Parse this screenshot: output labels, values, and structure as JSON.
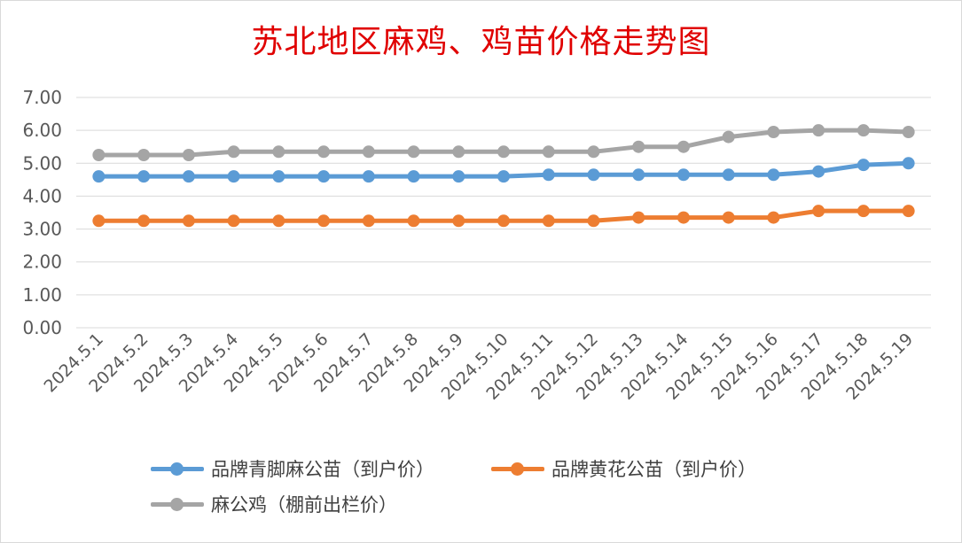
{
  "chart_data": {
    "type": "line",
    "title": "苏北地区麻鸡、鸡苗价格走势图",
    "categories": [
      "2024.5.1",
      "2024.5.2",
      "2024.5.3",
      "2024.5.4",
      "2024.5.5",
      "2024.5.6",
      "2024.5.7",
      "2024.5.8",
      "2024.5.9",
      "2024.5.10",
      "2024.5.11",
      "2024.5.12",
      "2024.5.13",
      "2024.5.14",
      "2024.5.15",
      "2024.5.16",
      "2024.5.17",
      "2024.5.18",
      "2024.5.19"
    ],
    "series": [
      {
        "name": "品牌青脚麻公苗（到户价）",
        "color": "#5b9bd5",
        "values": [
          4.6,
          4.6,
          4.6,
          4.6,
          4.6,
          4.6,
          4.6,
          4.6,
          4.6,
          4.6,
          4.65,
          4.65,
          4.65,
          4.65,
          4.65,
          4.65,
          4.75,
          4.95,
          5.0
        ]
      },
      {
        "name": "品牌黄花公苗（到户价）",
        "color": "#ed7d31",
        "values": [
          3.25,
          3.25,
          3.25,
          3.25,
          3.25,
          3.25,
          3.25,
          3.25,
          3.25,
          3.25,
          3.25,
          3.25,
          3.35,
          3.35,
          3.35,
          3.35,
          3.55,
          3.55,
          3.55
        ]
      },
      {
        "name": "麻公鸡（棚前出栏价）",
        "color": "#a5a5a5",
        "values": [
          5.25,
          5.25,
          5.25,
          5.35,
          5.35,
          5.35,
          5.35,
          5.35,
          5.35,
          5.35,
          5.35,
          5.35,
          5.5,
          5.5,
          5.8,
          5.95,
          6.0,
          6.0,
          5.95
        ]
      }
    ],
    "ylim": [
      0,
      7
    ],
    "yticks": [
      "0.00",
      "1.00",
      "2.00",
      "3.00",
      "4.00",
      "5.00",
      "6.00",
      "7.00"
    ],
    "grid": true,
    "legend_position": "bottom"
  },
  "legend": {
    "items": [
      {
        "label": "品牌青脚麻公苗（到户价）",
        "color": "#5b9bd5"
      },
      {
        "label": "品牌黄花公苗（到户价）",
        "color": "#ed7d31"
      },
      {
        "label": "麻公鸡（棚前出栏价）",
        "color": "#a5a5a5"
      }
    ]
  },
  "colors": {
    "title": "#e00000",
    "grid": "#d9d9d9",
    "tick_text": "#595959"
  }
}
